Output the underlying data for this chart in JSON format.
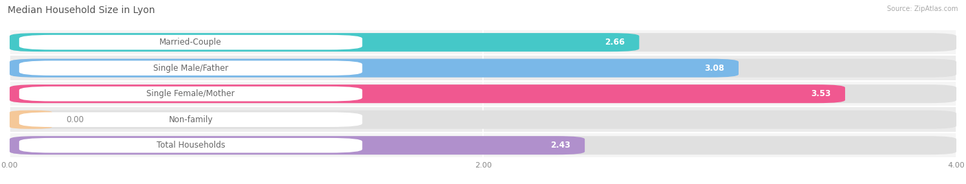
{
  "title": "Median Household Size in Lyon",
  "source": "Source: ZipAtlas.com",
  "categories": [
    "Married-Couple",
    "Single Male/Father",
    "Single Female/Mother",
    "Non-family",
    "Total Households"
  ],
  "values": [
    2.66,
    3.08,
    3.53,
    0.0,
    2.43
  ],
  "bar_colors": [
    "#45C8C8",
    "#7AB8E8",
    "#F05890",
    "#F5C898",
    "#B090CC"
  ],
  "xlim": [
    0,
    4.0
  ],
  "xticks": [
    0.0,
    2.0,
    4.0
  ],
  "xticklabels": [
    "0.00",
    "2.00",
    "4.00"
  ],
  "background_color": "#f5f5f5",
  "bar_bg_color": "#ececec",
  "row_bg_colors": [
    "#f8f8f8",
    "#f2f2f2"
  ],
  "title_fontsize": 10,
  "label_fontsize": 8.5,
  "value_fontsize": 8.5
}
